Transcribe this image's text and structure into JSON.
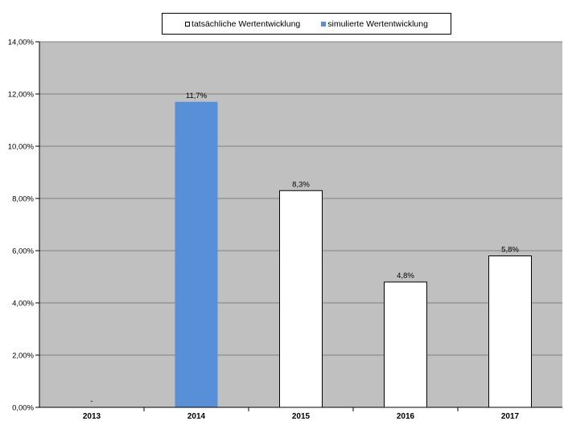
{
  "chart_data": {
    "type": "bar",
    "categories": [
      "2013",
      "2014",
      "2015",
      "2016",
      "2017"
    ],
    "values": [
      0,
      11.7,
      8.3,
      4.8,
      5.8
    ],
    "data_labels": [
      "-",
      "11,7%",
      "8,3%",
      "4,8%",
      "5,8%"
    ],
    "series_of_bar": [
      "tatsächliche Wertentwicklung",
      "simulierte Wertentwicklung",
      "tatsächliche Wertentwicklung",
      "tatsächliche Wertentwicklung",
      "tatsächliche Wertentwicklung"
    ],
    "series": [
      {
        "name": "tatsächliche Wertentwicklung",
        "color": "#ffffff",
        "border": "#000000"
      },
      {
        "name": "simulierte Wertentwicklung",
        "color": "#5890d8"
      }
    ],
    "yticks": [
      0,
      2,
      4,
      6,
      8,
      10,
      12,
      14
    ],
    "ytick_labels": [
      "0,00%",
      "2,00%",
      "4,00%",
      "6,00%",
      "8,00%",
      "10,00%",
      "12,00%",
      "14,00%"
    ],
    "ylim": [
      0,
      14
    ],
    "title": "",
    "xlabel": "",
    "ylabel": "",
    "grid": true,
    "legend_position": "top-center",
    "plot_background": "#c0c0c0",
    "grid_color": "#808080"
  }
}
